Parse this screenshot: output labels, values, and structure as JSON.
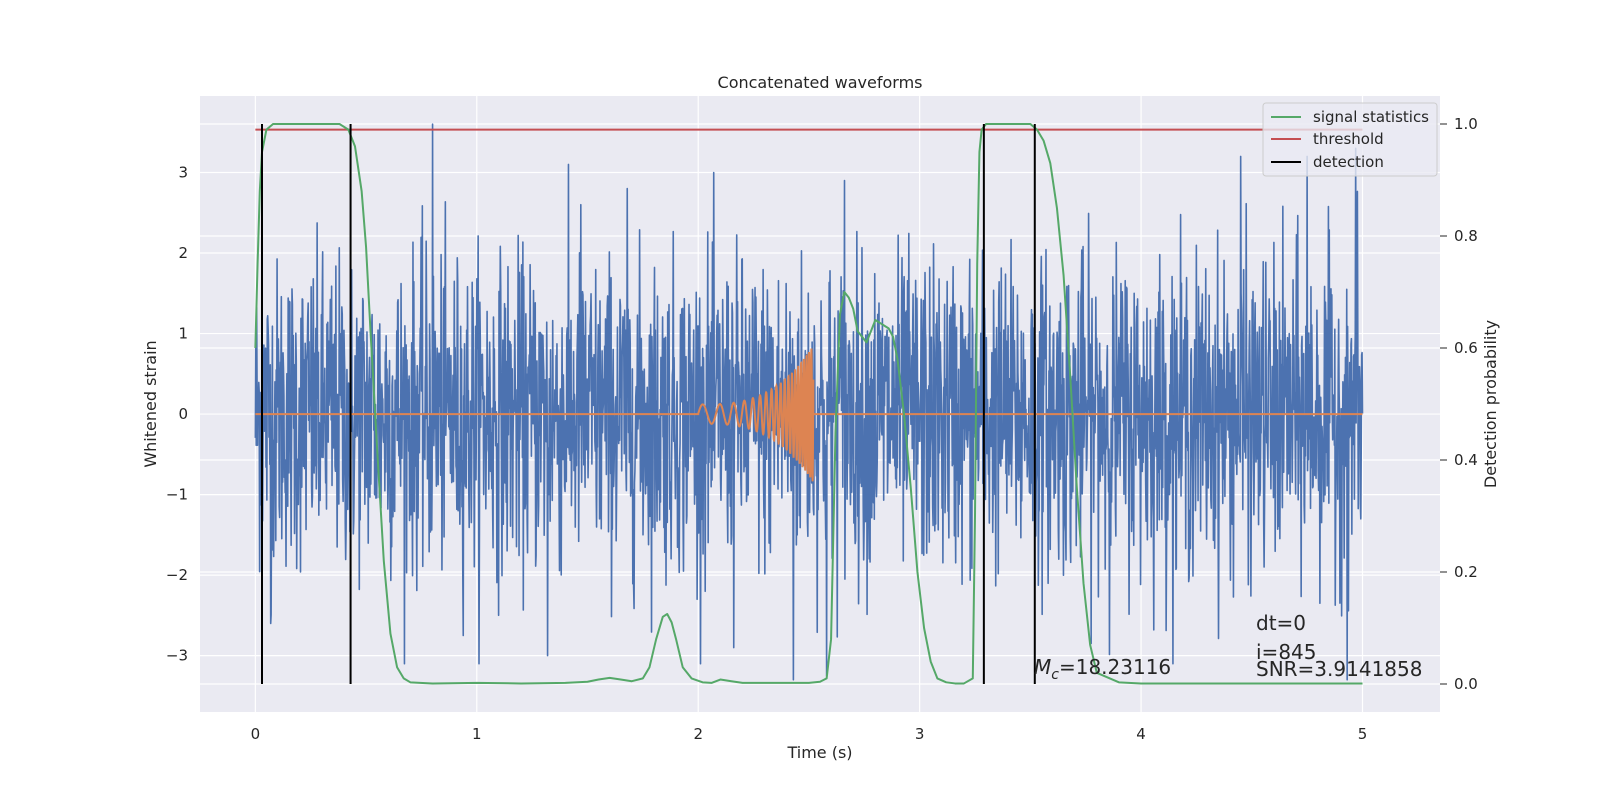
{
  "chart_data": {
    "type": "line",
    "title": "Concatenated waveforms",
    "xlabel": "Time (s)",
    "ylabel": "Whitened strain",
    "y2label": "Detection probability",
    "xlim": [
      -0.25,
      5.35
    ],
    "ylim": [
      -3.7,
      3.95
    ],
    "y2lim": [
      -0.05,
      1.05
    ],
    "x_ticks": [
      0,
      1,
      2,
      3,
      4,
      5
    ],
    "x_tick_labels": [
      "0",
      "1",
      "2",
      "3",
      "4",
      "5"
    ],
    "y_ticks": [
      -3,
      -2,
      -1,
      0,
      1,
      2,
      3
    ],
    "y_tick_labels": [
      "−3",
      "−2",
      "−1",
      "0",
      "1",
      "2",
      "3"
    ],
    "y2_ticks": [
      0.0,
      0.2,
      0.4,
      0.6,
      0.8,
      1.0
    ],
    "y2_tick_labels": [
      "0.0",
      "0.2",
      "0.4",
      "0.6",
      "0.8",
      "1.0"
    ],
    "grid": true,
    "legend_position": "top-right",
    "legend": [
      {
        "label": "signal statistics",
        "color": "#55a868"
      },
      {
        "label": "threshold",
        "color": "#c44e52"
      },
      {
        "label": "detection",
        "color": "#000000"
      }
    ],
    "series": [
      {
        "name": "whitened strain",
        "axis": "left",
        "color": "#4c72b0",
        "kind": "noise",
        "x_range": [
          0,
          5
        ],
        "std": 0.95,
        "num_samples": 2600,
        "peaks": [
          [
            0.8,
            3.6
          ],
          [
            4.45,
            3.2
          ],
          [
            4.75,
            3.2
          ],
          [
            4.97,
            3.3
          ],
          [
            2.43,
            -3.3
          ],
          [
            2.58,
            -3.25
          ],
          [
            4.93,
            -3.3
          ],
          [
            1.68,
            2.8
          ],
          [
            1.47,
            2.6
          ],
          [
            2.66,
            2.9
          ],
          [
            0.07,
            -2.6
          ],
          [
            1.32,
            -3.0
          ],
          [
            2.16,
            -2.9
          ]
        ]
      },
      {
        "name": "injected signal",
        "axis": "left",
        "color": "#dd8452",
        "kind": "chirp",
        "start": 2.0,
        "end": 2.52,
        "amp_start": 0.12,
        "amp_end": 0.85
      },
      {
        "name": "signal statistics",
        "axis": "right",
        "color": "#55a868",
        "x": [
          0.0,
          0.01,
          0.02,
          0.03,
          0.05,
          0.08,
          0.12,
          0.2,
          0.3,
          0.38,
          0.42,
          0.45,
          0.48,
          0.5,
          0.52,
          0.55,
          0.58,
          0.61,
          0.64,
          0.67,
          0.7,
          0.8,
          1.0,
          1.2,
          1.4,
          1.5,
          1.55,
          1.6,
          1.65,
          1.7,
          1.75,
          1.78,
          1.81,
          1.84,
          1.86,
          1.88,
          1.9,
          1.93,
          1.97,
          2.02,
          2.06,
          2.1,
          2.15,
          2.2,
          2.3,
          2.4,
          2.5,
          2.55,
          2.58,
          2.6,
          2.62,
          2.64,
          2.66,
          2.68,
          2.7,
          2.72,
          2.74,
          2.76,
          2.78,
          2.8,
          2.82,
          2.84,
          2.86,
          2.88,
          2.9,
          2.93,
          2.96,
          2.99,
          3.02,
          3.05,
          3.08,
          3.12,
          3.16,
          3.2,
          3.24,
          3.25,
          3.26,
          3.27,
          3.28,
          3.3,
          3.35,
          3.42,
          3.5,
          3.53,
          3.56,
          3.59,
          3.62,
          3.65,
          3.68,
          3.71,
          3.74,
          3.77,
          3.8,
          3.9,
          4.0,
          4.3,
          4.6,
          4.8,
          5.0
        ],
        "y": [
          0.6,
          0.75,
          0.88,
          0.95,
          0.99,
          1.0,
          1.0,
          1.0,
          1.0,
          1.0,
          0.99,
          0.96,
          0.88,
          0.78,
          0.63,
          0.42,
          0.22,
          0.09,
          0.03,
          0.01,
          0.003,
          0.001,
          0.002,
          0.001,
          0.002,
          0.004,
          0.008,
          0.011,
          0.008,
          0.005,
          0.01,
          0.03,
          0.08,
          0.12,
          0.125,
          0.11,
          0.08,
          0.03,
          0.01,
          0.003,
          0.002,
          0.008,
          0.005,
          0.002,
          0.002,
          0.002,
          0.002,
          0.004,
          0.01,
          0.08,
          0.45,
          0.66,
          0.7,
          0.69,
          0.67,
          0.63,
          0.62,
          0.61,
          0.63,
          0.65,
          0.645,
          0.64,
          0.635,
          0.62,
          0.58,
          0.48,
          0.35,
          0.2,
          0.1,
          0.04,
          0.01,
          0.003,
          0.001,
          0.001,
          0.01,
          0.3,
          0.75,
          0.95,
          0.99,
          1.0,
          1.0,
          1.0,
          1.0,
          0.99,
          0.97,
          0.93,
          0.85,
          0.73,
          0.55,
          0.35,
          0.18,
          0.07,
          0.02,
          0.003,
          0.001,
          0.001,
          0.001,
          0.001,
          0.001
        ]
      },
      {
        "name": "threshold",
        "axis": "right",
        "color": "#c44e52",
        "x": [
          0.0,
          5.0
        ],
        "y": [
          0.99,
          0.99
        ]
      }
    ],
    "detections": [
      0.03,
      0.43,
      3.29,
      3.52
    ],
    "annotations": {
      "mc": "M",
      "mc_sub": "c",
      "mc_value": "=18.23116",
      "dt": "dt=0",
      "i": "i=845",
      "snr": "SNR=3.9141858"
    }
  }
}
